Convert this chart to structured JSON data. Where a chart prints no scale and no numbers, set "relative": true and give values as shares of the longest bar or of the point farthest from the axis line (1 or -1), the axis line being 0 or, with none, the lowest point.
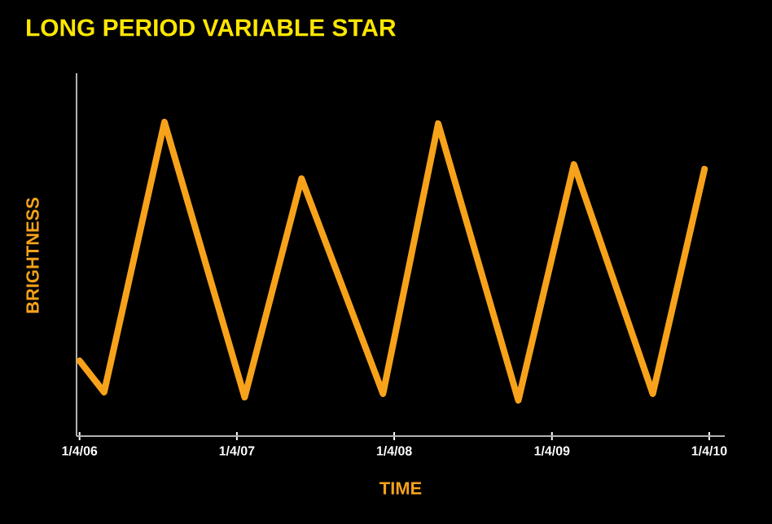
{
  "chart_data": {
    "type": "line",
    "title": "LONG PERIOD VARIABLE STAR",
    "xlabel": "TIME",
    "ylabel": "BRIGHTNESS",
    "relative": true,
    "x": [
      "2006-01-04",
      "2006-03-02",
      "2006-07-20",
      "2007-01-22",
      "2007-06-03",
      "2007-12-09",
      "2008-04-15",
      "2008-10-18",
      "2009-02-24",
      "2009-08-26",
      "2009-12-24"
    ],
    "series": [
      {
        "color": "#f7a21b",
        "values": [
          0.24,
          0.14,
          1.0,
          0.124,
          0.82,
          0.135,
          0.995,
          0.114,
          0.865,
          0.135,
          0.85
        ]
      }
    ],
    "xlim": [
      "2005-12-28",
      "2010-02-09"
    ],
    "xticks": [
      {
        "value": "2006-01-04",
        "label": "1/4/06"
      },
      {
        "value": "2007-01-04",
        "label": "1/4/07"
      },
      {
        "value": "2008-01-04",
        "label": "1/4/08"
      },
      {
        "value": "2009-01-04",
        "label": "1/4/09"
      },
      {
        "value": "2010-01-04",
        "label": "1/4/10"
      }
    ],
    "grid": false,
    "marker": "none",
    "line_style": "solid"
  }
}
